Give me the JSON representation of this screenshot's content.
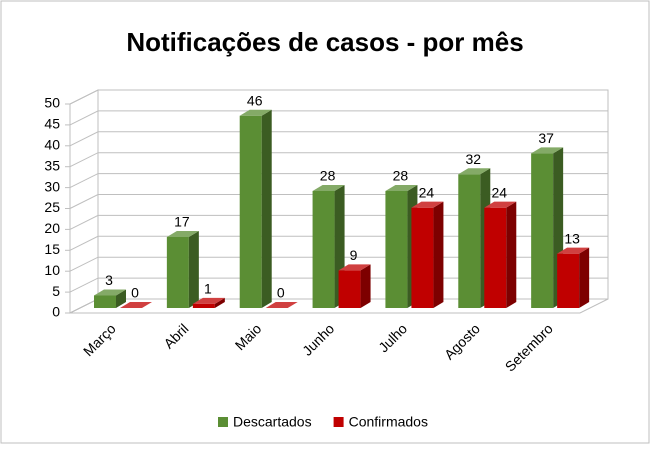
{
  "chart_data": {
    "type": "bar3d",
    "title": "Notificações de casos - por mês",
    "categories": [
      "Março",
      "Abril",
      "Maio",
      "Junho",
      "Julho",
      "Agosto",
      "Setembro"
    ],
    "series": [
      {
        "name": "Descartados",
        "color": "#5b8e34",
        "values": [
          3,
          17,
          46,
          28,
          28,
          32,
          37
        ]
      },
      {
        "name": "Confirmados",
        "color": "#c00000",
        "values": [
          0,
          1,
          0,
          9,
          24,
          24,
          13
        ]
      }
    ],
    "ylim": [
      0,
      50
    ],
    "yticks": [
      0,
      5,
      10,
      15,
      20,
      25,
      30,
      35,
      40,
      45,
      50
    ],
    "grid": true,
    "legend": "bottom"
  }
}
